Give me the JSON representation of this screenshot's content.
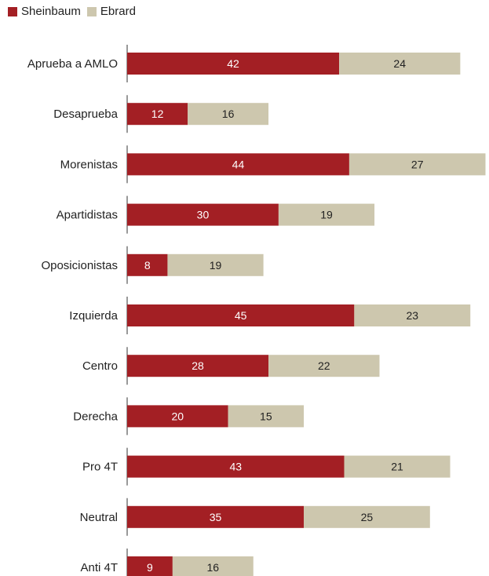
{
  "chart_data": {
    "type": "bar",
    "orientation": "horizontal",
    "stacked": true,
    "categories": [
      "Aprueba a AMLO",
      "Desaprueba",
      "Morenistas",
      "Apartidistas",
      "Oposicionistas",
      "Izquierda",
      "Centro",
      "Derecha",
      "Pro 4T",
      "Neutral",
      "Anti 4T"
    ],
    "series": [
      {
        "name": "Sheinbaum",
        "color": "#a31f24",
        "label_color": "#ffffff",
        "values": [
          42,
          12,
          44,
          30,
          8,
          45,
          28,
          20,
          43,
          35,
          9
        ]
      },
      {
        "name": "Ebrard",
        "color": "#cdc7ae",
        "label_color": "#222222",
        "values": [
          24,
          16,
          27,
          19,
          19,
          23,
          22,
          15,
          21,
          25,
          16
        ]
      }
    ],
    "legend": "top-left",
    "grid": false,
    "xlim": [
      0,
      71
    ]
  }
}
